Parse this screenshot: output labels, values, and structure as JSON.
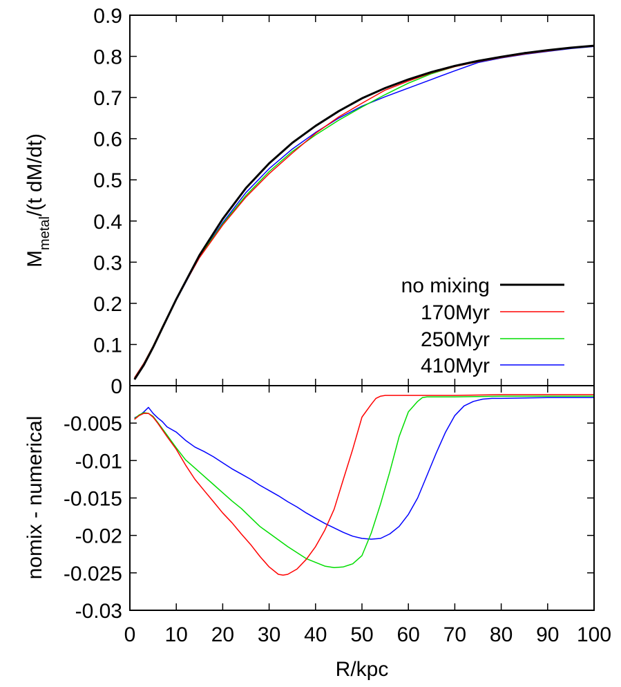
{
  "chart_data": [
    {
      "type": "line",
      "panel": "top",
      "ylabel_main": "M",
      "ylabel_sub": "metal",
      "ylabel_rest": "/(t dM/dt)",
      "xlim": [
        0,
        100
      ],
      "ylim": [
        0,
        0.9
      ],
      "x_ticks": [
        0,
        10,
        20,
        30,
        40,
        50,
        60,
        70,
        80,
        90,
        100
      ],
      "y_ticks": [
        0,
        0.1,
        0.2,
        0.3,
        0.4,
        0.5,
        0.6,
        0.7,
        0.8,
        0.9
      ],
      "y_tick_labels": [
        "0",
        "0.1",
        "0.2",
        "0.3",
        "0.4",
        "0.5",
        "0.6",
        "0.7",
        "0.8",
        "0.9"
      ],
      "legend_position": "bottom-right",
      "series": [
        {
          "name": "no mixing",
          "color": "#000000",
          "width": 3,
          "x": [
            1,
            3,
            5,
            7,
            10,
            15,
            20,
            25,
            30,
            35,
            40,
            45,
            50,
            55,
            60,
            65,
            70,
            75,
            80,
            85,
            90,
            95,
            100
          ],
          "y": [
            0.015,
            0.05,
            0.093,
            0.14,
            0.21,
            0.317,
            0.405,
            0.48,
            0.54,
            0.59,
            0.631,
            0.667,
            0.698,
            0.723,
            0.744,
            0.762,
            0.777,
            0.789,
            0.799,
            0.808,
            0.815,
            0.821,
            0.826
          ]
        },
        {
          "name": "170Myr",
          "color": "#ff0000",
          "width": 1.5,
          "x": [
            1,
            3,
            5,
            7,
            10,
            15,
            20,
            25,
            30,
            35,
            40,
            45,
            50,
            55,
            60,
            65,
            70,
            75,
            80,
            85,
            90,
            95,
            100
          ],
          "y": [
            0.019,
            0.054,
            0.096,
            0.143,
            0.211,
            0.311,
            0.39,
            0.458,
            0.515,
            0.565,
            0.613,
            0.653,
            0.686,
            0.718,
            0.74,
            0.76,
            0.775,
            0.787,
            0.797,
            0.806,
            0.813,
            0.82,
            0.825
          ]
        },
        {
          "name": "250Myr",
          "color": "#00dd00",
          "width": 1.5,
          "x": [
            1,
            3,
            5,
            7,
            10,
            15,
            20,
            25,
            30,
            35,
            40,
            45,
            50,
            55,
            60,
            65,
            70,
            75,
            80,
            85,
            90,
            95,
            100
          ],
          "y": [
            0.019,
            0.054,
            0.096,
            0.143,
            0.211,
            0.313,
            0.393,
            0.462,
            0.52,
            0.569,
            0.609,
            0.645,
            0.677,
            0.707,
            0.735,
            0.758,
            0.775,
            0.787,
            0.797,
            0.806,
            0.813,
            0.82,
            0.825
          ]
        },
        {
          "name": "410Myr",
          "color": "#0000ff",
          "width": 1.5,
          "x": [
            1,
            3,
            5,
            7,
            10,
            15,
            20,
            25,
            30,
            35,
            40,
            45,
            50,
            55,
            60,
            65,
            70,
            75,
            80,
            85,
            90,
            95,
            100
          ],
          "y": [
            0.019,
            0.054,
            0.095,
            0.142,
            0.208,
            0.313,
            0.396,
            0.469,
            0.527,
            0.575,
            0.615,
            0.65,
            0.679,
            0.702,
            0.723,
            0.744,
            0.765,
            0.785,
            0.796,
            0.805,
            0.812,
            0.819,
            0.824
          ]
        }
      ]
    },
    {
      "type": "line",
      "panel": "bottom",
      "xlabel": "R/kpc",
      "ylabel": "nomix - numerical",
      "xlim": [
        0,
        100
      ],
      "ylim": [
        -0.03,
        0
      ],
      "x_ticks": [
        0,
        10,
        20,
        30,
        40,
        50,
        60,
        70,
        80,
        90,
        100
      ],
      "x_tick_labels": [
        "0",
        "10",
        "20",
        "30",
        "40",
        "50",
        "60",
        "70",
        "80",
        "90",
        "100"
      ],
      "y_ticks": [
        -0.005,
        -0.01,
        -0.015,
        -0.02,
        -0.025,
        -0.03
      ],
      "y_tick_labels": [
        "-0.005",
        "-0.01",
        "-0.015",
        "-0.02",
        "-0.025",
        "-0.03"
      ],
      "series": [
        {
          "name": "170Myr",
          "color": "#ff0000",
          "width": 1.5,
          "x": [
            1,
            2,
            3,
            4,
            5,
            6,
            8,
            10,
            12,
            14,
            16,
            18,
            20,
            22,
            24,
            26,
            28,
            30,
            32,
            33,
            34,
            36,
            38,
            40,
            42,
            44,
            46,
            48,
            50,
            52,
            53,
            54,
            55,
            56,
            60,
            70,
            80,
            90,
            100
          ],
          "y": [
            -0.0045,
            -0.004,
            -0.0037,
            -0.0037,
            -0.0042,
            -0.005,
            -0.0068,
            -0.0085,
            -0.0106,
            -0.0125,
            -0.014,
            -0.0155,
            -0.017,
            -0.0183,
            -0.0198,
            -0.0212,
            -0.0228,
            -0.0242,
            -0.0252,
            -0.0253,
            -0.0252,
            -0.0245,
            -0.0232,
            -0.0215,
            -0.0193,
            -0.0165,
            -0.0125,
            -0.0085,
            -0.0042,
            -0.0025,
            -0.0017,
            -0.0014,
            -0.0013,
            -0.0013,
            -0.0013,
            -0.0013,
            -0.0012,
            -0.0012,
            -0.0012
          ]
        },
        {
          "name": "250Myr",
          "color": "#00dd00",
          "width": 1.5,
          "x": [
            1,
            2,
            3,
            4,
            5,
            6,
            8,
            10,
            12,
            14,
            16,
            18,
            20,
            22,
            24,
            26,
            28,
            30,
            34,
            38,
            42,
            44,
            46,
            48,
            50,
            52,
            54,
            56,
            58,
            60,
            62,
            63,
            64,
            65,
            70,
            80,
            90,
            100
          ],
          "y": [
            -0.0044,
            -0.0039,
            -0.0036,
            -0.0037,
            -0.0041,
            -0.0049,
            -0.0066,
            -0.0083,
            -0.0099,
            -0.011,
            -0.0121,
            -0.0132,
            -0.0143,
            -0.0154,
            -0.0164,
            -0.0176,
            -0.0188,
            -0.0197,
            -0.0215,
            -0.0231,
            -0.0241,
            -0.0243,
            -0.0242,
            -0.0238,
            -0.0227,
            -0.0197,
            -0.0158,
            -0.0115,
            -0.0068,
            -0.0035,
            -0.0021,
            -0.0016,
            -0.0015,
            -0.0015,
            -0.0015,
            -0.0014,
            -0.0014,
            -0.0014
          ]
        },
        {
          "name": "410Myr",
          "color": "#0000ff",
          "width": 1.5,
          "x": [
            1,
            2,
            3,
            4,
            5,
            6,
            7,
            8,
            10,
            12,
            14,
            16,
            18,
            20,
            22,
            24,
            26,
            28,
            30,
            32,
            34,
            36,
            38,
            40,
            42,
            44,
            46,
            48,
            50,
            52,
            54,
            56,
            58,
            60,
            62,
            64,
            66,
            68,
            70,
            72,
            74,
            76,
            78,
            80,
            90,
            100
          ],
          "y": [
            -0.0043,
            -0.004,
            -0.0035,
            -0.0029,
            -0.0037,
            -0.0043,
            -0.0048,
            -0.0055,
            -0.0062,
            -0.0073,
            -0.0082,
            -0.0088,
            -0.0095,
            -0.0103,
            -0.0111,
            -0.0118,
            -0.0125,
            -0.0133,
            -0.014,
            -0.0147,
            -0.0155,
            -0.0162,
            -0.017,
            -0.0177,
            -0.0184,
            -0.019,
            -0.0196,
            -0.0201,
            -0.0204,
            -0.0205,
            -0.0204,
            -0.0198,
            -0.0188,
            -0.0172,
            -0.015,
            -0.012,
            -0.009,
            -0.0062,
            -0.004,
            -0.0027,
            -0.0021,
            -0.0018,
            -0.0017,
            -0.0017,
            -0.0016,
            -0.0016
          ]
        }
      ]
    }
  ]
}
